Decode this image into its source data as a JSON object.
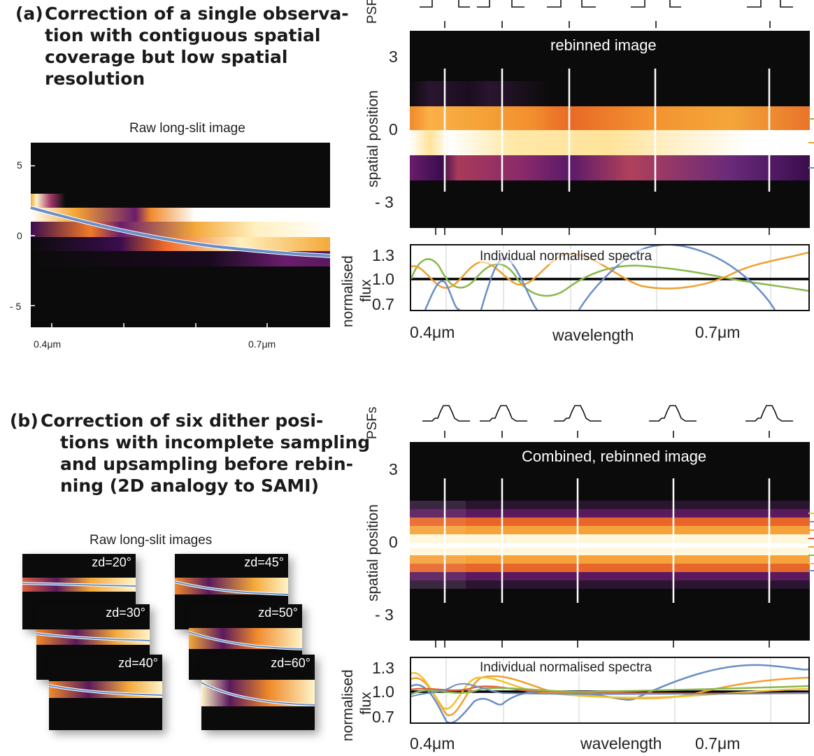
{
  "panel_a": {
    "tag": "(a)",
    "heading_lines": [
      "Correction of a single observa-",
      "tion with contiguous spatial",
      "coverage but low spatial",
      "resolution"
    ],
    "raw_title": "Raw long-slit image",
    "raw_y_ticks": [
      "5",
      "0",
      "- 5"
    ],
    "raw_x_ticks": [
      "0.4μm",
      "0.7μm"
    ],
    "psf_label": "PSFs",
    "image_title": "rebinned image",
    "y_label": "spatial position",
    "y_ticks": [
      "3",
      "0",
      "- 3"
    ],
    "spectra_title": "Individual normalised spectra",
    "flux_label_1": "normalised",
    "flux_label_2": "flux",
    "flux_ticks": [
      "1.3",
      "1.0",
      "0.7"
    ],
    "x_ticks": [
      "0.4μm",
      "0.7μm"
    ],
    "x_label": "wavelength"
  },
  "panel_b": {
    "tag": "(b)",
    "heading_lines": [
      "Correction of six dither posi-",
      "tions with incomplete sampling",
      "and upsampling before rebin-",
      "ning (2D analogy to SAMI)"
    ],
    "raw_title": "Raw long-slit images",
    "thumbs": [
      "zd=20°",
      "zd=45°",
      "zd=30°",
      "zd=50°",
      "zd=40°",
      "zd=60°"
    ],
    "psf_label": "PSFs",
    "image_title": "Combined, rebinned image",
    "y_label": "spatial position",
    "y_ticks": [
      "3",
      "0",
      "- 3"
    ],
    "spectra_title": "Individual normalised spectra",
    "flux_label_1": "normalised",
    "flux_label_2": "flux",
    "flux_ticks": [
      "1.3",
      "1.0",
      "0.7"
    ],
    "x_ticks": [
      "0.4μm",
      "0.7μm"
    ],
    "x_label": "wavelength"
  },
  "colors": {
    "blue": "#6a8fc7",
    "orange": "#f0a030",
    "green": "#8ab84a",
    "yellow": "#f2c230",
    "red": "#e06040",
    "background": "#0c0b0c"
  }
}
